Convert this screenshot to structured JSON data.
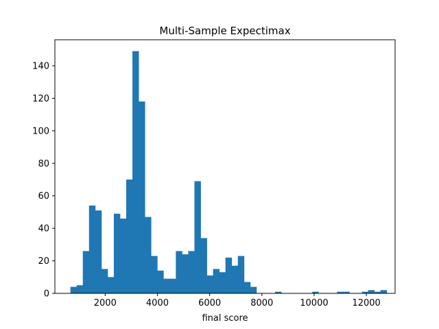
{
  "chart_data": {
    "type": "bar",
    "subtype": "histogram",
    "title": "Multi-Sample Expectimax",
    "xlabel": "final score",
    "ylabel": "",
    "xlim": [
      75,
      13100
    ],
    "ylim": [
      0,
      156
    ],
    "xticks": [
      2000,
      4000,
      6000,
      8000,
      10000,
      12000
    ],
    "xtick_labels": [
      "2000",
      "4000",
      "6000",
      "8000",
      "10000",
      "12000"
    ],
    "yticks": [
      0,
      20,
      40,
      60,
      80,
      100,
      120,
      140
    ],
    "ytick_labels": [
      "0",
      "20",
      "40",
      "60",
      "80",
      "100",
      "120",
      "140"
    ],
    "bin_start": 670,
    "bin_width": 237.4,
    "counts": [
      4,
      5,
      26,
      54,
      51,
      15,
      10,
      49,
      46,
      70,
      149,
      118,
      47,
      23,
      14,
      9,
      9,
      26,
      24,
      26,
      69,
      34,
      11,
      15,
      13,
      22,
      17,
      23,
      7,
      4,
      0,
      0,
      0,
      1,
      0,
      0,
      0,
      0,
      0,
      1,
      0,
      0,
      0,
      1,
      1,
      0,
      0,
      1,
      2,
      1,
      2
    ],
    "bar_color": "#1f77b4",
    "grid": false,
    "legend": "none"
  }
}
